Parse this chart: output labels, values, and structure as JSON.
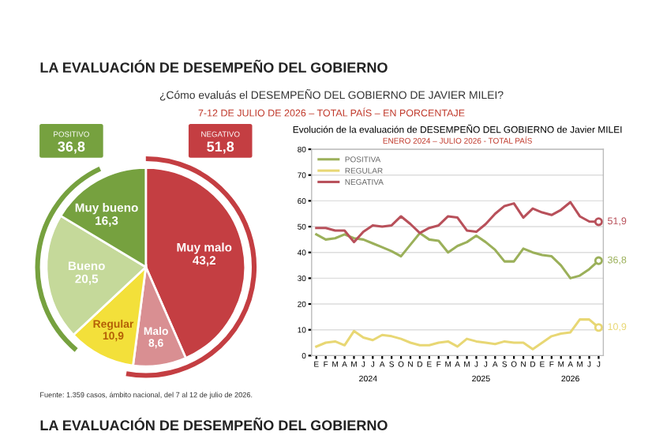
{
  "chart_data": [
    {
      "type": "pie",
      "title": "LA EVALUACIÓN DE DESEMPEÑO DEL GOBIERNO",
      "subtitle": "¿Cómo evaluás el DESEMPEÑO DEL GOBIERNO DE JAVIER MILEI?",
      "categories": [
        "Muy malo",
        "Malo",
        "Regular",
        "Bueno",
        "Muy bueno"
      ],
      "values": [
        43.2,
        8.6,
        10.9,
        20.5,
        16.3
      ],
      "value_labels": [
        "43,2",
        "8,6",
        "10,9",
        "20,5",
        "16,3"
      ],
      "colors": [
        "#c43e42",
        "#d98f92",
        "#f3e03a",
        "#c5d99a",
        "#76a13f"
      ],
      "annotations": [
        "7-12 DE JULIO DE 2026 – TOTAL PAÍS – EN PORCENTAJE",
        "POSITIVO",
        "36,8",
        "NEGATIVO",
        "51,8",
        "Fuente: 1.359 casos, ámbito nacional, del 7 al 12 de julio de 2026.",
        "LA EVALUACIÓN DE DESEMPEÑO DEL GOBIERNO"
      ]
    },
    {
      "type": "line",
      "title": "Evolución de la evaluación de DESEMPEÑO DEL GOBIERNO de Javier MILEI",
      "subtitle": "ENERO 2024 – JULIO 2026 - TOTAL PAÍS",
      "categories": [
        "E",
        "F",
        "M",
        "A",
        "M",
        "J",
        "J",
        "A",
        "S",
        "O",
        "N",
        "D",
        "E",
        "F",
        "M",
        "A",
        "M",
        "J",
        "J",
        "A",
        "S",
        "O",
        "N",
        "D",
        "E",
        "F",
        "M",
        "A",
        "M",
        "J",
        "J"
      ],
      "series": [
        {
          "name": "POSITIVA",
          "color": "#9bb05a",
          "values": [
            47,
            45,
            45.5,
            47,
            45.5,
            45,
            43.5,
            42,
            40.5,
            38.5,
            43,
            47.5,
            45,
            44.5,
            40,
            42.5,
            44,
            46.5,
            44,
            41,
            36.5,
            36.5,
            41.5,
            40,
            39,
            38.5,
            35,
            30,
            31,
            33.5,
            36.8
          ],
          "value_labels": [
            null,
            null,
            null,
            null,
            null,
            null,
            null,
            null,
            null,
            null,
            null,
            null,
            null,
            null,
            null,
            null,
            null,
            null,
            null,
            null,
            null,
            null,
            null,
            null,
            null,
            null,
            null,
            null,
            null,
            null,
            "36,8"
          ]
        },
        {
          "name": "REGULAR",
          "color": "#e8d774",
          "values": [
            3.5,
            5,
            5.5,
            4,
            9.5,
            7,
            6,
            8,
            7.5,
            6.5,
            5,
            4,
            4,
            5,
            5.5,
            3.5,
            6.5,
            5.5,
            5,
            4.5,
            5.5,
            5,
            5,
            2.5,
            5,
            7.5,
            8.5,
            9,
            14,
            14,
            10.9
          ],
          "value_labels": [
            null,
            null,
            null,
            null,
            null,
            null,
            null,
            null,
            null,
            null,
            null,
            null,
            null,
            null,
            null,
            null,
            null,
            null,
            null,
            null,
            null,
            null,
            null,
            null,
            null,
            null,
            null,
            null,
            null,
            null,
            "10,9"
          ]
        },
        {
          "name": "NEGATIVA",
          "color": "#b8505a",
          "values": [
            49.5,
            49.5,
            48.5,
            48.5,
            44,
            48,
            50.5,
            50,
            50.5,
            54,
            51,
            47.5,
            49.5,
            50.5,
            54,
            53.5,
            48.5,
            48,
            51,
            55,
            58,
            59,
            53.5,
            57,
            55.5,
            54.5,
            56.5,
            59.5,
            54,
            52,
            51.9
          ],
          "value_labels": [
            null,
            null,
            null,
            null,
            null,
            null,
            null,
            null,
            null,
            null,
            null,
            null,
            null,
            null,
            null,
            null,
            null,
            null,
            null,
            null,
            null,
            null,
            null,
            null,
            null,
            null,
            null,
            null,
            null,
            null,
            "51,9"
          ]
        }
      ],
      "ylim": [
        0,
        80
      ],
      "yticks": [
        0,
        10,
        20,
        30,
        40,
        50,
        60,
        70,
        80
      ],
      "grid": "y",
      "legend": "top left",
      "annotations": [
        "2024",
        "2025",
        "2026"
      ]
    }
  ]
}
